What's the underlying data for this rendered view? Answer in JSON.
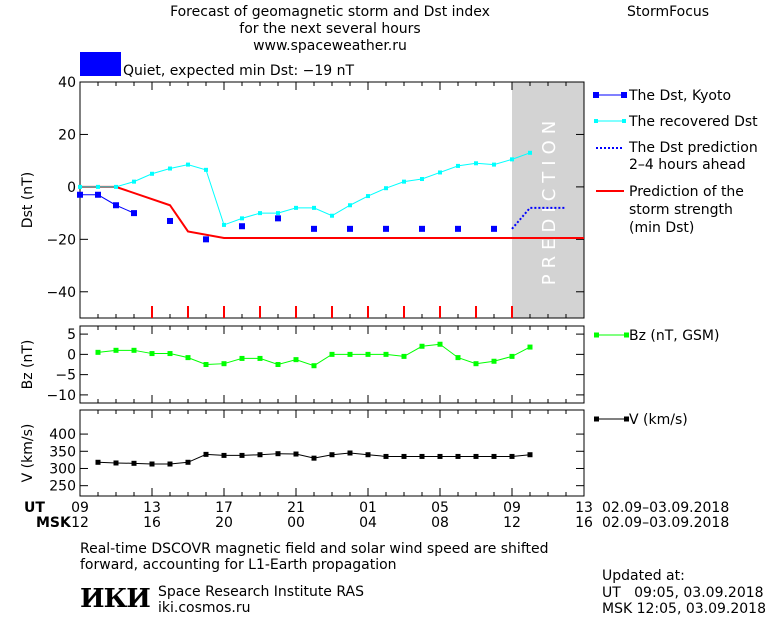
{
  "header": {
    "title_line1": "Forecast of geomagnetic storm and Dst index",
    "title_line2": "for the next several hours",
    "url": "www.spaceweather.ru",
    "brand": "StormFocus",
    "status_text": "Quiet, expected min Dst: −19 nT",
    "status_color": "#0000ff"
  },
  "footer": {
    "ut_label": "UT",
    "msk_label": "MSK",
    "ut_ticks": [
      "09",
      "13",
      "17",
      "21",
      "01",
      "05",
      "09",
      "13"
    ],
    "msk_ticks": [
      "12",
      "16",
      "20",
      "00",
      "04",
      "08",
      "12",
      "16"
    ],
    "date_range_ut": "02.09–03.09.2018",
    "date_range_msk": "02.09–03.09.2018",
    "note_line1": "Real-time DSCOVR magnetic field and solar wind speed are shifted",
    "note_line2": "forward, accounting for L1-Earth propagation",
    "institute": "Space Research Institute RAS",
    "site": "iki.cosmos.ru",
    "logo": "ИКИ",
    "updated_label": "Updated at:",
    "updated_ut": "UT   09:05, 03.09.2018",
    "updated_msk": "MSK 12:05, 03.09.2018"
  },
  "colors": {
    "dst_kyoto": "#0000ff",
    "recovered": "#00ffff",
    "prediction_dotted": "#0000ff",
    "storm_strength": "#ff0000",
    "bz": "#00ff00",
    "v": "#000000",
    "prediction_band": "#d3d3d3"
  },
  "chart_data": [
    {
      "type": "line",
      "ylabel": "Dst (nT)",
      "ylim": [
        -50,
        40
      ],
      "yticks": [
        40,
        20,
        0,
        -20,
        -40
      ],
      "xlim": [
        0,
        28
      ],
      "prediction_text": "PREDICTION",
      "prediction_range": [
        24,
        28
      ],
      "storm_ticks_x": [
        4,
        6,
        8,
        10,
        12,
        14,
        16,
        18,
        20,
        22,
        24
      ],
      "series": [
        {
          "name": "The Dst, Kyoto",
          "x": [
            0,
            1,
            2,
            3,
            5,
            7,
            9,
            11,
            13,
            15,
            17,
            19,
            21,
            23
          ],
          "y": [
            -3,
            -3,
            -7,
            -10,
            -13,
            -20,
            -15,
            -12,
            -16,
            -16,
            -16,
            -16,
            -16,
            -16
          ]
        },
        {
          "name": "The recovered Dst",
          "x": [
            0,
            1,
            2,
            3,
            4,
            5,
            6,
            7,
            8,
            9,
            10,
            11,
            12,
            13,
            14,
            15,
            16,
            17,
            18,
            19,
            20,
            21,
            22,
            23,
            24,
            25
          ],
          "y": [
            0,
            0,
            0,
            2,
            5,
            7,
            8.5,
            6.5,
            -14.5,
            -12,
            -10,
            -10,
            -8,
            -8,
            -11,
            -7,
            -3.5,
            -0.5,
            2,
            3,
            5.5,
            8,
            9,
            8.5,
            10.5,
            13
          ]
        },
        {
          "name": "The Dst prediction 2–4 hours ahead",
          "x": [
            24,
            25,
            26,
            27
          ],
          "y": [
            -16,
            -8,
            -8,
            -8
          ]
        },
        {
          "name": "Prediction of the storm strength (min Dst)",
          "x": [
            0,
            2,
            5,
            6,
            8,
            28
          ],
          "y": [
            0,
            0,
            -7,
            -17,
            -19.5,
            -19.5
          ]
        }
      ]
    },
    {
      "type": "line",
      "ylabel": "Bz (nT)",
      "ylim": [
        -12,
        7
      ],
      "yticks": [
        5,
        0,
        -5,
        -10
      ],
      "xlim": [
        0,
        28
      ],
      "series": [
        {
          "name": "Bz (nT, GSM)",
          "x": [
            1,
            2,
            3,
            4,
            5,
            6,
            7,
            8,
            9,
            10,
            11,
            12,
            13,
            14,
            15,
            16,
            17,
            18,
            19,
            20,
            21,
            22,
            23,
            24,
            25
          ],
          "y": [
            0.5,
            1,
            1,
            0.2,
            0.2,
            -0.8,
            -2.5,
            -2.3,
            -1,
            -1,
            -2.5,
            -1.3,
            -2.8,
            0,
            0,
            0,
            0,
            -0.5,
            2,
            2.5,
            -0.8,
            -2.3,
            -1.7,
            -0.5,
            1.8
          ]
        }
      ]
    },
    {
      "type": "line",
      "ylabel": "V (km/s)",
      "ylim": [
        220,
        470
      ],
      "yticks": [
        400,
        350,
        300,
        250
      ],
      "xlim": [
        0,
        28
      ],
      "series": [
        {
          "name": "V (km/s)",
          "x": [
            1,
            2,
            3,
            4,
            5,
            6,
            7,
            8,
            9,
            10,
            11,
            12,
            13,
            14,
            15,
            16,
            17,
            18,
            19,
            20,
            21,
            22,
            23,
            24,
            25
          ],
          "y": [
            318,
            316,
            315,
            313,
            313,
            318,
            341,
            338,
            338,
            340,
            343,
            342,
            330,
            340,
            345,
            340,
            335,
            335,
            335,
            335,
            335,
            335,
            335,
            335,
            340
          ]
        }
      ]
    }
  ]
}
